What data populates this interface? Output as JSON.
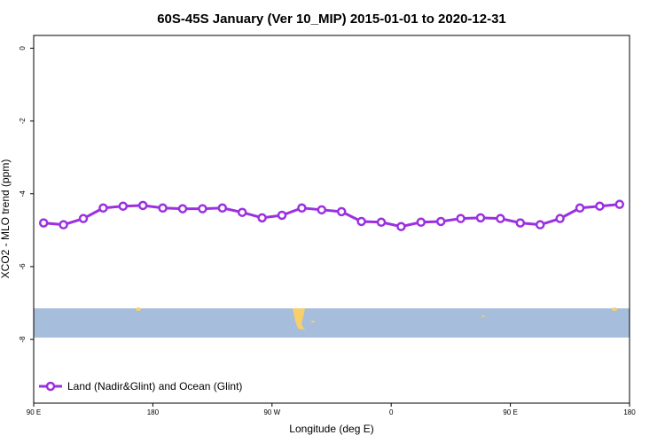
{
  "chart_data": {
    "type": "line",
    "title": "60S-45S January (Ver 10_MIP)   2015-01-01 to 2020-12-31",
    "xlabel": "Longitude (deg E)",
    "ylabel": "XCO2 - MLO trend (ppm)",
    "x": [
      97.5,
      112.5,
      127.5,
      142.5,
      157.5,
      172.5,
      187.5,
      202.5,
      217.5,
      232.5,
      247.5,
      262.5,
      277.5,
      292.5,
      307.5,
      322.5,
      337.5,
      352.5,
      367.5,
      382.5,
      397.5,
      412.5,
      427.5,
      442.5,
      457.5,
      472.5,
      487.5,
      502.5,
      517.5,
      532.5
    ],
    "series": [
      {
        "name": "Land (Nadir&Glint) and Ocean (Glint)",
        "color": "#9b30e0",
        "values": [
          -4.8,
          -4.85,
          -4.68,
          -4.39,
          -4.34,
          -4.32,
          -4.39,
          -4.41,
          -4.41,
          -4.39,
          -4.51,
          -4.66,
          -4.59,
          -4.39,
          -4.44,
          -4.49,
          -4.76,
          -4.78,
          -4.9,
          -4.78,
          -4.76,
          -4.68,
          -4.66,
          -4.68,
          -4.8,
          -4.85,
          -4.68,
          -4.39,
          -4.34,
          -4.29
        ]
      }
    ],
    "xlim": [
      90,
      540
    ],
    "xticks": [
      {
        "value": 90,
        "label": "90 E"
      },
      {
        "value": 180,
        "label": "180"
      },
      {
        "value": 270,
        "label": "90 W"
      },
      {
        "value": 360,
        "label": "0"
      },
      {
        "value": 450,
        "label": "90 E"
      },
      {
        "value": 540,
        "label": "180"
      }
    ],
    "ylim": [
      -9.75,
      0.35
    ],
    "yticks": [
      0,
      -2,
      -4,
      -6,
      -8
    ],
    "legend": "bottom-left"
  }
}
